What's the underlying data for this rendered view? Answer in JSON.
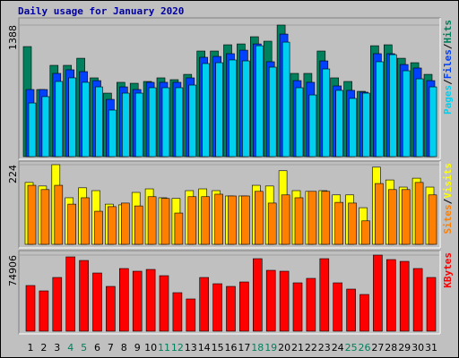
{
  "chart_data": {
    "type": "bar",
    "title": "Daily usage for January 2020",
    "categories": [
      "1",
      "2",
      "3",
      "4",
      "5",
      "6",
      "7",
      "8",
      "9",
      "10",
      "11",
      "12",
      "13",
      "14",
      "15",
      "16",
      "17",
      "18",
      "19",
      "20",
      "21",
      "22",
      "23",
      "24",
      "25",
      "26",
      "27",
      "28",
      "29",
      "30",
      "31"
    ],
    "category_colors": [
      "#000000",
      "#000000",
      "#000000",
      "#00805c",
      "#00805c",
      "#000000",
      "#000000",
      "#000000",
      "#000000",
      "#000000",
      "#00805c",
      "#00805c",
      "#000000",
      "#000000",
      "#000000",
      "#000000",
      "#000000",
      "#00805c",
      "#00805c",
      "#000000",
      "#000000",
      "#000000",
      "#000000",
      "#000000",
      "#00805c",
      "#00805c",
      "#000000",
      "#000000",
      "#000000",
      "#000000",
      "#000000"
    ],
    "separator": "/",
    "panels": [
      {
        "ylim": [
          0,
          1388
        ],
        "yticks": [
          1388
        ],
        "series": [
          {
            "name": "Hits",
            "color": "#00805c",
            "values": [
              1161,
              708,
              963,
              963,
              1038,
              831,
              670,
              784,
              774,
              793,
              831,
              812,
              868,
              1114,
              1114,
              1180,
              1189,
              1265,
              1218,
              1388,
              878,
              878,
              1114,
              831,
              793,
              689,
              1170,
              1180,
              1038,
              991,
              868
            ]
          },
          {
            "name": "Files",
            "color": "#0040ff",
            "values": [
              708,
              708,
              878,
              916,
              897,
              802,
              604,
              736,
              708,
              784,
              784,
              784,
              831,
              1048,
              1057,
              1086,
              1123,
              1189,
              1001,
              1293,
              802,
              784,
              1010,
              746,
              699,
              680,
              1086,
              1086,
              972,
              935,
              802
            ]
          },
          {
            "name": "Pages",
            "color": "#00d0f0",
            "values": [
              566,
              633,
              793,
              831,
              784,
              736,
              491,
              670,
              670,
              727,
              727,
              727,
              755,
              982,
              991,
              1020,
              1010,
              1170,
              944,
              1208,
              727,
              651,
              925,
              699,
              614,
              670,
              1001,
              1076,
              906,
              821,
              736
            ]
          }
        ]
      },
      {
        "ylim": [
          0,
          224
        ],
        "yticks": [
          224
        ],
        "series": [
          {
            "name": "Visits",
            "color": "#ffff00",
            "values": [
              174,
              164,
              224,
              131,
              159,
              151,
              113,
              111,
              146,
              156,
              131,
              129,
              151,
              156,
              151,
              136,
              136,
              166,
              164,
              207,
              151,
              149,
              151,
              139,
              139,
              103,
              217,
              181,
              161,
              186,
              161
            ]
          },
          {
            "name": "Sites",
            "color": "#ff8000",
            "values": [
              166,
              154,
              166,
              113,
              131,
              93,
              106,
              116,
              108,
              134,
              129,
              88,
              134,
              134,
              141,
              136,
              136,
              149,
              116,
              139,
              131,
              149,
              149,
              118,
              116,
              66,
              171,
              154,
              154,
              174,
              139
            ]
          }
        ]
      },
      {
        "ylim": [
          0,
          74906
        ],
        "yticks": [
          74906
        ],
        "series": [
          {
            "name": "KBytes",
            "color": "#ff0000",
            "values": [
              44931,
              39645,
              52860,
              73123,
              69599,
              57265,
              44050,
              61670,
              59027,
              60789,
              54622,
              37883,
              31716,
              52860,
              46693,
              44050,
              48455,
              71361,
              59908,
              59027,
              47574,
              51979,
              71361,
              47574,
              41407,
              36121,
              74906,
              70480,
              68718,
              61670,
              52860
            ]
          }
        ]
      }
    ]
  }
}
